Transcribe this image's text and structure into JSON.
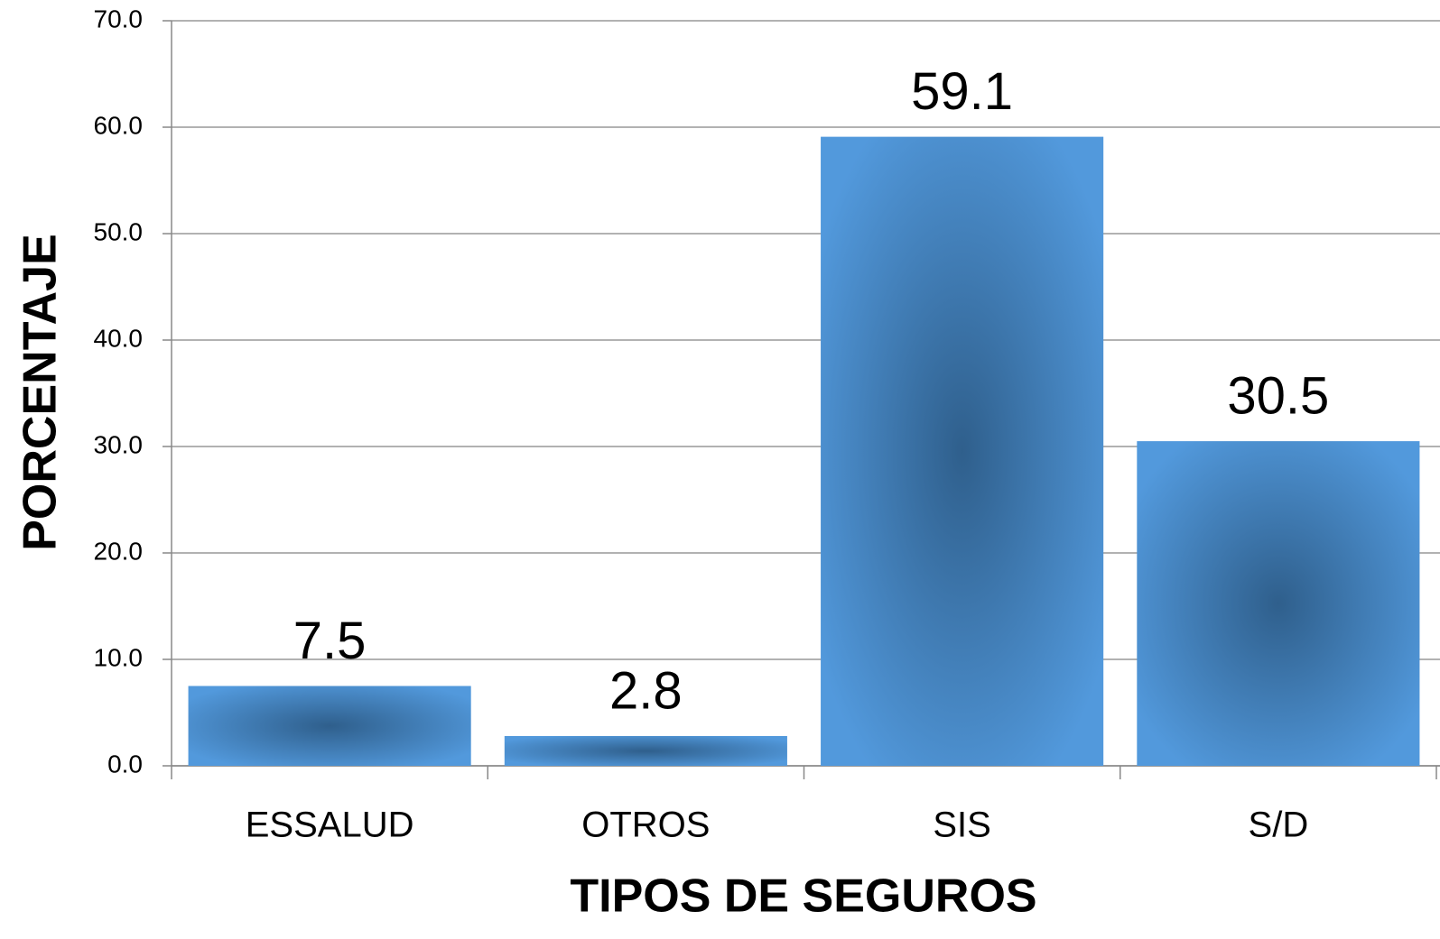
{
  "chart_data": {
    "type": "bar",
    "x_label": "TIPOS DE SEGUROS",
    "y_label": "PORCENTAJE",
    "categories": [
      "ESSALUD",
      "OTROS",
      "SIS",
      "S/D"
    ],
    "values": [
      7.5,
      2.8,
      59.1,
      30.5
    ],
    "color": "#5299dc",
    "ylim": [
      0,
      70
    ],
    "yticks": [
      {
        "value": 0,
        "label": "0.0"
      },
      {
        "value": 10,
        "label": "10.0"
      },
      {
        "value": 20,
        "label": "20.0"
      },
      {
        "value": 30,
        "label": "30.0"
      },
      {
        "value": 40,
        "label": "40.0"
      },
      {
        "value": 50,
        "label": "50.0"
      },
      {
        "value": 60,
        "label": "60.0"
      },
      {
        "value": 70,
        "label": "70.0"
      }
    ],
    "grid": true
  }
}
